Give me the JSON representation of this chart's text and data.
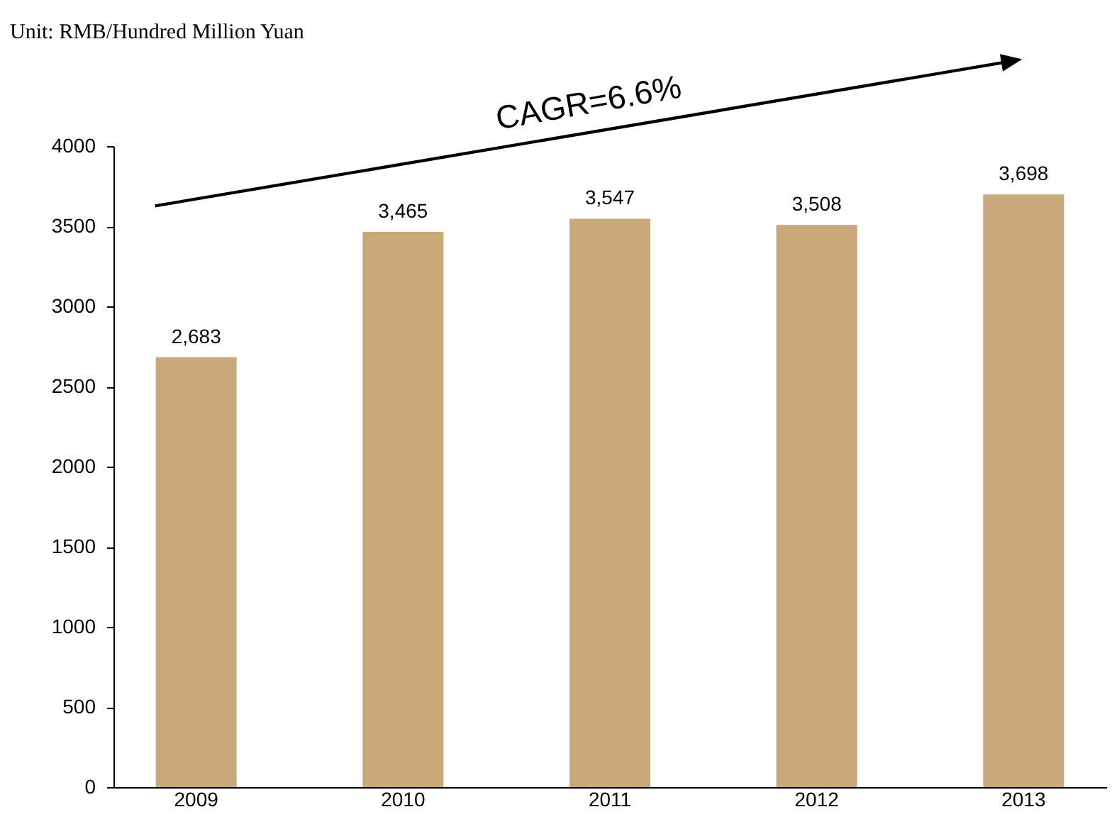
{
  "chart_data": {
    "type": "bar",
    "categories": [
      "2009",
      "2010",
      "2011",
      "2012",
      "2013"
    ],
    "values": [
      2683,
      3465,
      3547,
      3508,
      3698
    ],
    "value_labels": [
      "2,683",
      "3,465",
      "3,547",
      "3,508",
      "3,698"
    ],
    "color": "#c9a97a",
    "ylim": [
      0,
      4000
    ],
    "yticks": [
      0,
      500,
      1000,
      1500,
      2000,
      2500,
      3000,
      3500,
      4000
    ],
    "grid": false,
    "annotations": [
      "Unit: RMB/Hundred Million Yuan",
      "CAGR=6.6%"
    ]
  }
}
